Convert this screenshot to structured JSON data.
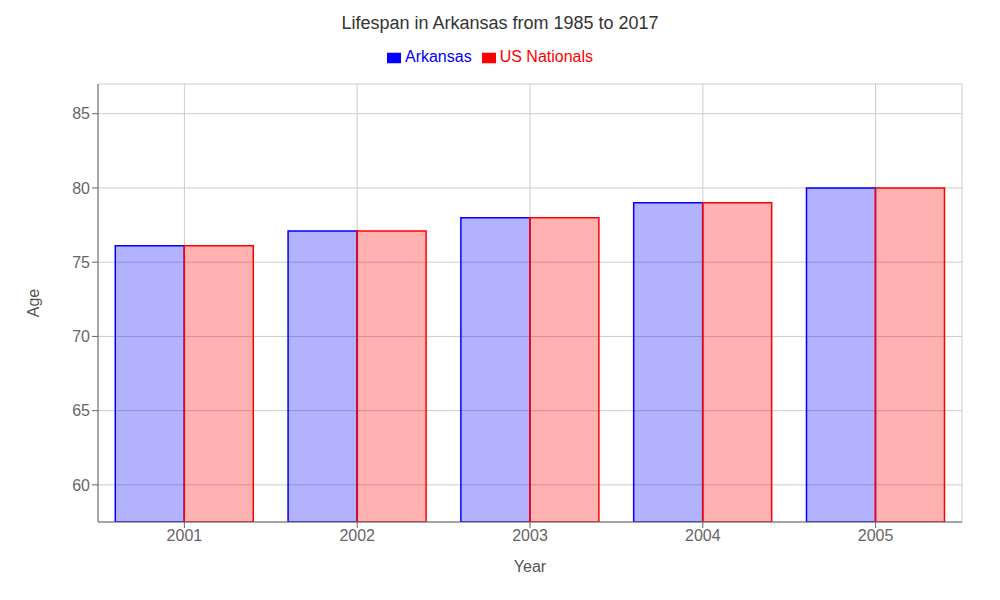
{
  "chart_data": {
    "type": "bar",
    "title": "Lifespan in Arkansas from 1985 to 2017",
    "x_label": "Year",
    "y_label": "Age",
    "categories": [
      "2001",
      "2002",
      "2003",
      "2004",
      "2005"
    ],
    "series": [
      {
        "name": "Arkansas",
        "color": "#0000ff",
        "values": [
          76.1,
          77.1,
          78.0,
          79.0,
          80.0
        ]
      },
      {
        "name": "US Nationals",
        "color": "#ff0000",
        "values": [
          76.1,
          77.1,
          78.0,
          79.0,
          80.0
        ]
      }
    ],
    "ylim": [
      57.5,
      87
    ],
    "yticks": [
      60,
      65,
      70,
      75,
      80,
      85
    ],
    "grid": true,
    "legend": "top"
  }
}
